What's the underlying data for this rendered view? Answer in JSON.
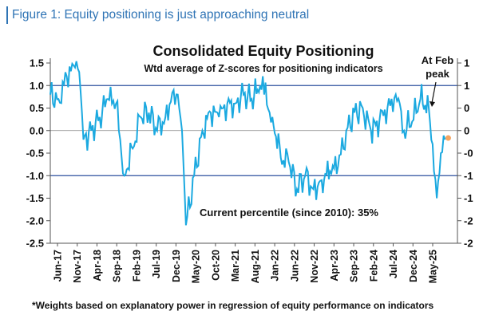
{
  "figure_title": "Figure 1: Equity positioning is just approaching neutral",
  "footnote": "*Weights based on explanatory power in regression of equity performance on indicators",
  "colors": {
    "line": "#1ba9e0",
    "ref_line": "#2b4f9e",
    "last_point": "#f4a460",
    "title_blue": "#2f74b5",
    "axis": "#555555"
  },
  "chart_data": {
    "type": "line",
    "title": "Consolidated Equity Positioning",
    "subtitle": "Wtd average of Z-scores for positioning indicators",
    "annotations": {
      "feb_peak": [
        "At Feb",
        "peak"
      ],
      "current": "Current percentile (since 2010): 35%"
    },
    "ylim": [
      -2.5,
      1.5
    ],
    "y_ticks": [
      "1.5",
      "1.0",
      "0.5",
      "0.0",
      "-0.5",
      "-1.0",
      "-1.5",
      "-2.0",
      "-2.5"
    ],
    "right_ticks": [
      "1",
      "1",
      "0",
      "0",
      "-0",
      "-1",
      "-1",
      "-2",
      "-2"
    ],
    "reference_lines": [
      1.0,
      -1.0
    ],
    "x_ticks": [
      "Jun-17",
      "Nov-17",
      "Apr-18",
      "Sep-18",
      "Feb-19",
      "Jul-19",
      "Dec-19",
      "May-20",
      "Oct-20",
      "Mar-21",
      "Aug-21",
      "Jan-22",
      "Jun-22",
      "Nov-22",
      "Apr-23",
      "Sep-23",
      "Feb-24",
      "Jul-24",
      "Dec-24",
      "May-25"
    ],
    "series": [
      {
        "x": [
          "2017-06",
          "2017-08",
          "2017-10",
          "2017-12",
          "2018-01",
          "2018-02",
          "2018-04",
          "2018-06",
          "2018-08",
          "2018-10",
          "2018-12",
          "2019-02",
          "2019-04",
          "2019-06",
          "2019-08",
          "2019-10",
          "2019-12",
          "2020-01",
          "2020-02",
          "2020-03",
          "2020-05",
          "2020-07",
          "2020-09",
          "2020-11",
          "2021-01",
          "2021-03",
          "2021-05",
          "2021-07",
          "2021-09",
          "2021-10",
          "2021-12",
          "2022-02",
          "2022-04",
          "2022-06",
          "2022-08",
          "2022-10",
          "2022-12",
          "2023-02",
          "2023-04",
          "2023-06",
          "2023-08",
          "2023-10",
          "2023-12",
          "2024-02",
          "2024-04",
          "2024-06",
          "2024-07",
          "2024-08",
          "2024-10",
          "2024-12",
          "2025-02",
          "2025-03",
          "2025-04",
          "2025-05",
          "2025-06"
        ],
        "values": [
          0.8,
          0.7,
          1.2,
          1.4,
          1.3,
          -0.2,
          0.0,
          0.3,
          0.7,
          0.6,
          -1.0,
          -0.4,
          0.3,
          0.4,
          0.0,
          0.3,
          0.9,
          0.8,
          0.0,
          -2.1,
          -1.0,
          0.0,
          0.4,
          0.3,
          0.6,
          0.6,
          0.8,
          0.7,
          1.0,
          0.8,
          0.3,
          -0.6,
          -0.7,
          -1.3,
          -1.0,
          -1.3,
          -1.1,
          -0.9,
          -0.8,
          0.0,
          0.4,
          0.5,
          0.0,
          0.2,
          0.5,
          0.8,
          0.6,
          0.0,
          0.2,
          0.7,
          0.5,
          -0.3,
          -1.5,
          -0.5,
          -0.2
        ]
      }
    ]
  }
}
